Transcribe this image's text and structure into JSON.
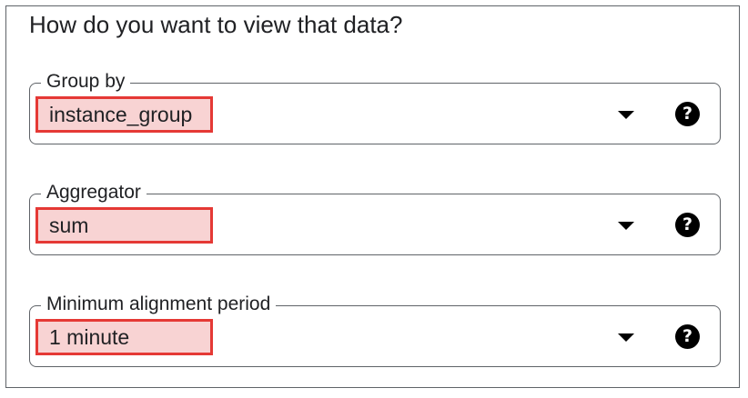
{
  "title": "How do you want to view that data?",
  "fields": [
    {
      "label": "Group by",
      "value": "instance_group",
      "dropdown_icon": "triangle-down-icon",
      "help_icon": "help-circle-icon",
      "help_glyph": "?"
    },
    {
      "label": "Aggregator",
      "value": "sum",
      "dropdown_icon": "triangle-down-icon",
      "help_icon": "help-circle-icon",
      "help_glyph": "?"
    },
    {
      "label": "Minimum alignment period",
      "value": "1 minute",
      "dropdown_icon": "triangle-down-icon",
      "help_icon": "help-circle-icon",
      "help_glyph": "?"
    }
  ],
  "colors": {
    "highlight_border": "#e53935",
    "highlight_fill": "#f8d3d3",
    "border": "#5f6368",
    "text": "#202124"
  }
}
